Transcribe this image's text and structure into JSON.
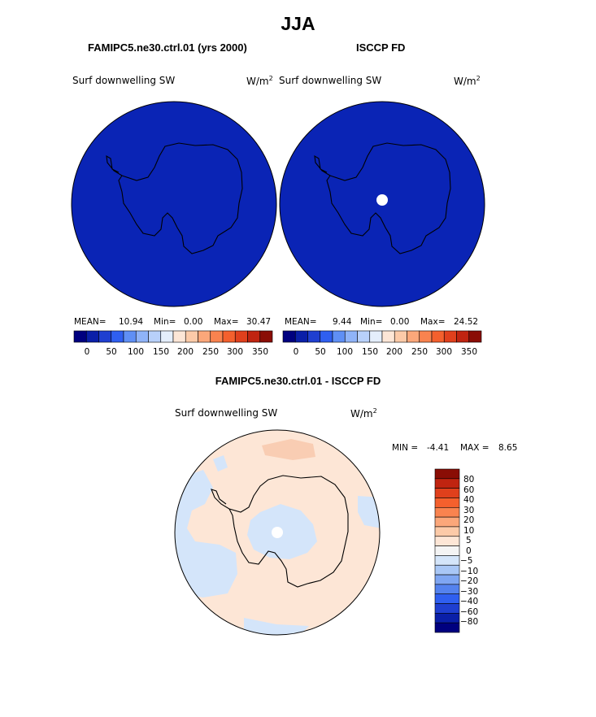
{
  "title": "JJA",
  "panels": [
    {
      "heading": "FAMIPC5.ne30.ctrl.01 (yrs 2000)",
      "field": "Surf downwelling SW",
      "units": "W/m",
      "units_sup": "2",
      "stats": {
        "mean_label": "MEAN=",
        "mean": "10.94",
        "min_label": "Min=",
        "min": "0.00",
        "max_label": "Max=",
        "max": "30.47"
      }
    },
    {
      "heading": "ISCCP FD",
      "field": "Surf downwelling SW",
      "units": "W/m",
      "units_sup": "2",
      "stats": {
        "mean_label": "MEAN=",
        "mean": "9.44",
        "min_label": "Min=",
        "min": "0.00",
        "max_label": "Max=",
        "max": "24.52"
      }
    }
  ],
  "colorbar_abs": {
    "colors": [
      "#00007f",
      "#0a1fa8",
      "#1f3fd0",
      "#2f5ff0",
      "#5f8ff5",
      "#8fb3f8",
      "#b8d0fa",
      "#e4eefc",
      "#fde6d6",
      "#fccaa8",
      "#fba77a",
      "#f9834f",
      "#f4602d",
      "#e0401c",
      "#c02410",
      "#8a0d05"
    ],
    "ticks": [
      "0",
      "50",
      "100",
      "150",
      "200",
      "250",
      "300",
      "350"
    ]
  },
  "diff": {
    "heading": "FAMIPC5.ne30.ctrl.01 - ISCCP FD",
    "field": "Surf downwelling SW",
    "units": "W/m",
    "units_sup": "2",
    "min_label": "MIN =",
    "min": "-4.41",
    "max_label": "MAX =",
    "max": "8.65"
  },
  "colorbar_diff": {
    "colors": [
      "#8a0d05",
      "#c02410",
      "#e0401c",
      "#f4602d",
      "#f9834f",
      "#fba77a",
      "#fccaa8",
      "#fde6d6",
      "#f4f4f4",
      "#d4e5fa",
      "#a9c7f6",
      "#7fa6f2",
      "#5482ee",
      "#2f5ff0",
      "#1f3fd0",
      "#0a1fa8",
      "#00007f"
    ],
    "labels": [
      "80",
      "60",
      "40",
      "30",
      "20",
      "10",
      "5",
      "0",
      "−5",
      "−10",
      "−20",
      "−30",
      "−40",
      "−60",
      "−80"
    ]
  },
  "map_colors": {
    "ocean_abs": "#0a24b5",
    "diff_positive": "#fde6d6",
    "diff_negative": "#d4e5fa",
    "pole_hole": "#ffffff"
  }
}
